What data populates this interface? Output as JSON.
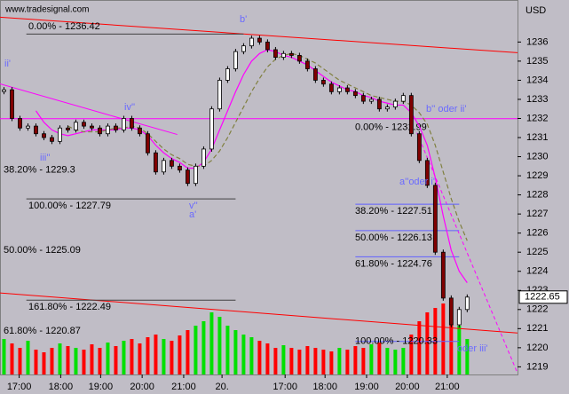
{
  "chart_data": {
    "type": "candlestick",
    "source": "www.tradesignal.com",
    "currency": "USD",
    "closes": [
      1233.5,
      1232,
      1231.5,
      1231.6,
      1231.2,
      1231,
      1230.8,
      1231.5,
      1231.4,
      1231.8,
      1231.6,
      1231.5,
      1231.2,
      1231.6,
      1231.4,
      1232,
      1231.5,
      1231.2,
      1230.2,
      1229.2,
      1229.8,
      1229.5,
      1229.3,
      1228.6,
      1229.5,
      1230.4,
      1232.5,
      1234,
      1234.6,
      1235.5,
      1235.8,
      1236.2,
      1236,
      1235.6,
      1235.2,
      1235.4,
      1235.3,
      1235,
      1234.6,
      1234,
      1233.8,
      1233.4,
      1233.6,
      1233.4,
      1233.2,
      1232.9,
      1233,
      1232.5,
      1232.6,
      1232.9,
      1233.2,
      1231.2,
      1229.8,
      1228.5,
      1225,
      1222.6,
      1221.2,
      1222,
      1222.65
    ],
    "volume": [
      40,
      35,
      30,
      38,
      28,
      25,
      30,
      35,
      32,
      30,
      28,
      34,
      30,
      36,
      32,
      38,
      40,
      35,
      42,
      45,
      40,
      38,
      44,
      50,
      55,
      60,
      70,
      65,
      55,
      50,
      45,
      42,
      38,
      35,
      30,
      33,
      30,
      28,
      32,
      30,
      28,
      26,
      30,
      28,
      32,
      30,
      34,
      36,
      30,
      28,
      30,
      45,
      60,
      70,
      75,
      80,
      65,
      55,
      40
    ],
    "moving_averages": [
      {
        "color": "#ff00ff",
        "dash": false,
        "values": [
          null,
          null,
          null,
          null,
          1232.4,
          1231.8,
          1231.4,
          1231.2,
          1231.1,
          1231.2,
          1231.3,
          1231.4,
          1231.4,
          1231.4,
          1231.4,
          1231.5,
          1231.5,
          1231.4,
          1231.1,
          1230.6,
          1230.2,
          1229.9,
          1229.7,
          1229.4,
          1229.4,
          1229.7,
          1230.4,
          1231.4,
          1232.4,
          1233.4,
          1234.3,
          1235,
          1235.4,
          1235.6,
          1235.5,
          1235.3,
          1235.2,
          1235,
          1234.8,
          1234.5,
          1234.2,
          1233.9,
          1233.7,
          1233.5,
          1233.4,
          1233.2,
          1233.1,
          1232.9,
          1232.8,
          1232.7,
          1232.7,
          1232.3,
          1231.6,
          1230.6,
          1228.9,
          1226.9,
          1225.1,
          1224,
          1223.4
        ]
      },
      {
        "color": "#808040",
        "dash": true,
        "values": [
          null,
          null,
          null,
          null,
          null,
          null,
          null,
          null,
          1231.6,
          1231.4,
          1231.3,
          1231.3,
          1231.3,
          1231.4,
          1231.5,
          1231.5,
          1231.6,
          1231.5,
          1231.2,
          1230.8,
          1230.4,
          1230.1,
          1229.9,
          1229.6,
          1229.5,
          1229.5,
          1229.8,
          1230.3,
          1231,
          1231.8,
          1232.6,
          1233.4,
          1234.1,
          1234.7,
          1235.1,
          1235.3,
          1235.4,
          1235.3,
          1235.1,
          1234.9,
          1234.6,
          1234.3,
          1234,
          1233.8,
          1233.6,
          1233.4,
          1233.2,
          1233.1,
          1233,
          1232.9,
          1232.9,
          1232.7,
          1232.3,
          1231.7,
          1230.6,
          1229.2,
          1227.8,
          1226.6,
          1225.6
        ]
      }
    ],
    "trend_lines": [
      {
        "color": "#ff0000",
        "from": [
          -0.5,
          1237.3
        ],
        "to": [
          64.3,
          1235.44
        ],
        "dash": false
      },
      {
        "color": "#ff0000",
        "from": [
          -0.5,
          1222.87
        ],
        "to": [
          64.3,
          1220.77
        ],
        "dash": false
      },
      {
        "color": "#ff00ff",
        "from": [
          -0.5,
          1233.81
        ],
        "to": [
          21.7,
          1231.16
        ],
        "dash": false
      },
      {
        "color": "#ff00ff",
        "from": [
          -0.5,
          1231.99
        ],
        "to": [
          64.3,
          1231.99
        ],
        "dash": false
      },
      {
        "color": "#ff00ff",
        "from": [
          51.7,
          1231.25
        ],
        "to": [
          64.3,
          1218.67
        ],
        "dash": true
      }
    ],
    "fib_levels": [
      {
        "label": "0.00% - 1236.42",
        "value": 1236.42,
        "from": 2.8,
        "to": 30.0,
        "color": "#404040"
      },
      {
        "label": "38.20% - 1229.3",
        "value": 1229.3,
        "from": null,
        "to": null,
        "color": "#404040"
      },
      {
        "label": "100.00% - 1227.79",
        "value": 1227.79,
        "from": 2.8,
        "to": 29.0,
        "color": "#404040"
      },
      {
        "label": "50.00% - 1225.09",
        "value": 1225.09,
        "from": null,
        "to": null,
        "color": "#404040"
      },
      {
        "label": "161.80% - 1222.49",
        "value": 1222.49,
        "from": 2.8,
        "to": 29.0,
        "color": "#404040"
      },
      {
        "label": "61.80% - 1220.87",
        "value": 1220.87,
        "from": null,
        "to": null,
        "color": "#404040"
      },
      {
        "label": "0.00% - 1231.99",
        "value": 1231.99,
        "from": null,
        "to": null,
        "color": "#6060ff"
      },
      {
        "label": "38.20% - 1227.51",
        "value": 1227.51,
        "from": 44.0,
        "to": 57.0,
        "color": "#6060ff"
      },
      {
        "label": "50.00% - 1226.13",
        "value": 1226.13,
        "from": 44.0,
        "to": 57.0,
        "color": "#6060ff"
      },
      {
        "label": "61.80% - 1224.76",
        "value": 1224.76,
        "from": 44.0,
        "to": 57.0,
        "color": "#6060ff"
      },
      {
        "label": "100.00% - 1220.33",
        "value": 1220.33,
        "from": 44.0,
        "to": 57.0,
        "color": "#6060ff"
      }
    ],
    "wave_labels": [
      "b'",
      "ii'",
      "iv''",
      "iii''",
      "v''",
      "a'",
      "b'' oder ii'",
      "a''oder i'",
      "oder iii'"
    ],
    "xlim": [
      -0.5,
      64.3
    ],
    "xticks": [
      {
        "value": 1.9,
        "label": "17:00"
      },
      {
        "value": 7.1,
        "label": "18:00"
      },
      {
        "value": 12.1,
        "label": "19:00"
      },
      {
        "value": 17.3,
        "label": "20:00"
      },
      {
        "value": 22.5,
        "label": "21:00"
      },
      {
        "value": 27.3,
        "label": "20."
      },
      {
        "value": 35.2,
        "label": "17:00"
      },
      {
        "value": 40.2,
        "label": "18:00"
      },
      {
        "value": 45.4,
        "label": "19:00"
      },
      {
        "value": 50.5,
        "label": "20:00"
      },
      {
        "value": 55.5,
        "label": "21:00"
      }
    ],
    "ylim": [
      1218.6,
      1238.2
    ],
    "yticks": [
      1219,
      1220,
      1221,
      1222,
      1223,
      1224,
      1225,
      1226,
      1227,
      1228,
      1229,
      1230,
      1231,
      1232,
      1233,
      1234,
      1235,
      1236
    ],
    "last_price": 1222.65,
    "up_color": "#00e000",
    "down_color": "#ff0000"
  }
}
